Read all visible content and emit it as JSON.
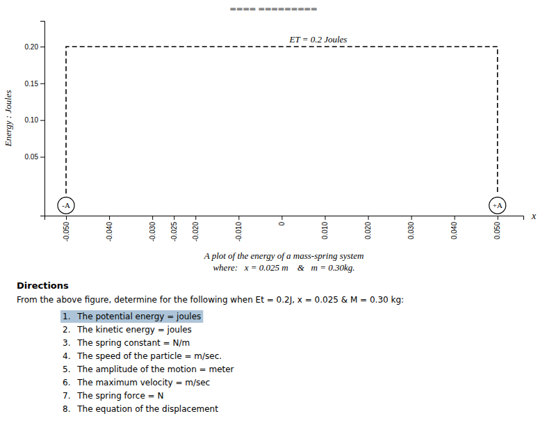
{
  "chart_data": {
    "type": "line",
    "title": "▬▬▬▬ ▬▬▬▬▬▬▬▬▬",
    "x_label": "x",
    "y_label": "Energy : Joules",
    "x": [
      -0.05,
      -0.05,
      0.05,
      0.05
    ],
    "values": [
      0.0,
      0.2,
      0.2,
      0.0
    ],
    "color": "#000000",
    "line_style": "dashed",
    "grid": false,
    "xlim": [
      -0.055,
      0.056
    ],
    "ylim": [
      -0.03,
      0.235
    ],
    "xticks": [
      {
        "value": -0.05,
        "label": "-0.050"
      },
      {
        "value": -0.04,
        "label": "-0.040"
      },
      {
        "value": -0.03,
        "label": "-0.030"
      },
      {
        "value": -0.025,
        "label": "-0.025"
      },
      {
        "value": -0.02,
        "label": "-0.020"
      },
      {
        "value": -0.01,
        "label": "-0.010"
      },
      0,
      {
        "value": 0.01,
        "label": "0.010"
      },
      {
        "value": 0.02,
        "label": "0.020"
      },
      {
        "value": 0.03,
        "label": "0.030"
      },
      {
        "value": 0.04,
        "label": "0.040"
      },
      {
        "value": 0.05,
        "label": "0.050"
      }
    ],
    "yticks": [
      0.05,
      {
        "value": 0.1,
        "label": "0.10"
      },
      0.15,
      {
        "value": 0.2,
        "label": "0.20"
      }
    ],
    "annotations": [
      {
        "text": "EΤ = 0.2 Joules",
        "y": 0.2
      },
      {
        "text": "-A",
        "x": -0.05
      },
      {
        "text": "+A",
        "x": 0.05
      }
    ],
    "caption": [
      "A plot of the energy of a mass-spring system",
      "where:   x = 0.025 m    &   m = 0.30kg."
    ],
    "footer": {
      "title": "Directions",
      "text": "From the above figure, determine for the following when Et = 0.2J, x = 0.025 & M = 0.30 kg:",
      "items": [
        "1.  The potential energy = joules",
        "2.  The kinetic energy = joules",
        "3.  The spring constant = N/m",
        "4.  The speed of the particle = m/sec.",
        "5.  The amplitude of the motion = meter",
        "6.  The maximum velocity = m/sec",
        "7.  The spring force = N",
        "8.  The equation of the displacement"
      ],
      "highlight_color": "#adc4d8"
    }
  }
}
